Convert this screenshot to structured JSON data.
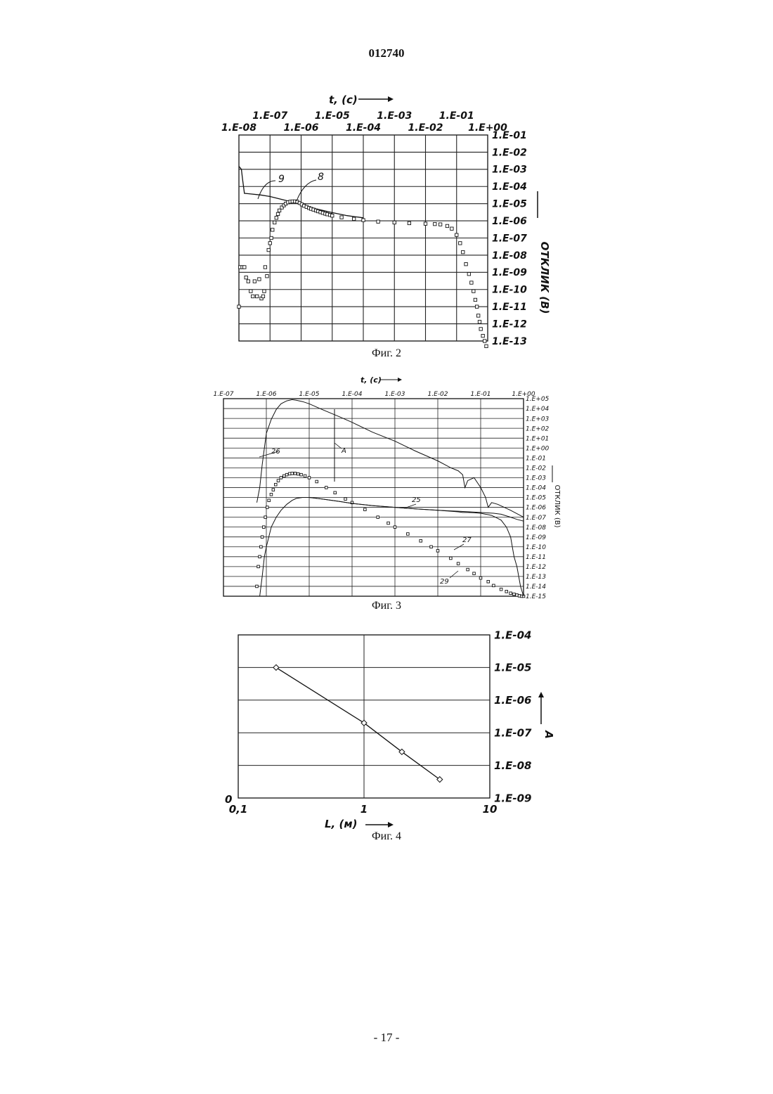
{
  "header": {
    "doc_number": "012740"
  },
  "footer": {
    "page_number": "- 17 -"
  },
  "chart_data": [
    {
      "type": "line",
      "caption": "Фиг. 2",
      "xlabel": "t, (c)",
      "ylabel": "ОТКЛИК (В)",
      "xscale": "log",
      "yscale": "log",
      "xlim": [
        1e-08,
        1
      ],
      "ylim": [
        1e-13,
        0.1
      ],
      "grid": true,
      "x_ticks_upper": [
        "1.E-07",
        "1.E-05",
        "1.E-03",
        "1.E-01"
      ],
      "x_ticks_lower": [
        "1.E-08",
        "1.E-06",
        "1.E-04",
        "1.E-02",
        "1.E+00"
      ],
      "y_ticks": [
        "1.E-01",
        "1.E-02",
        "1.E-03",
        "1.E-04",
        "1.E-05",
        "1.E-06",
        "1.E-07",
        "1.E-08",
        "1.E-09",
        "1.E-10",
        "1.E-11",
        "1.E-12",
        "1.E-13"
      ],
      "series": [
        {
          "name": "9",
          "style": "line",
          "x": [
            1e-08,
            1.2e-08,
            1.3e-08,
            1.5e-08,
            2e-08,
            5e-08,
            1e-07,
            3e-07,
            1e-06,
            3e-06,
            1e-05,
            3e-05,
            0.0001
          ],
          "y": [
            0.0015,
            0.001,
            0.0003,
            4e-05,
            3.8e-05,
            3.2e-05,
            2.6e-05,
            1.6e-05,
            9e-06,
            5e-06,
            3e-06,
            2e-06,
            1.5e-06
          ]
        },
        {
          "name": "8",
          "style": "markers",
          "x": [
            1e-08,
            1.1e-08,
            1.3e-08,
            1.5e-08,
            1.7e-08,
            2e-08,
            2.4e-08,
            2.8e-08,
            3.2e-08,
            3.8e-08,
            4.5e-08,
            5.3e-08,
            6e-08,
            6.5e-08,
            7e-08,
            8e-08,
            9e-08,
            1e-07,
            1.1e-07,
            1.2e-07,
            1.4e-07,
            1.6e-07,
            1.8e-07,
            2e-07,
            2.4e-07,
            2.8e-07,
            3.2e-07,
            3.8e-07,
            4.5e-07,
            5.3e-07,
            6.3e-07,
            7.5e-07,
            9e-07,
            1.05e-06,
            1.25e-06,
            1.5e-06,
            1.8e-06,
            2.1e-06,
            2.5e-06,
            3e-06,
            3.5e-06,
            4.2e-06,
            5e-06,
            6e-06,
            7e-06,
            8.5e-06,
            1e-05,
            2e-05,
            5e-05,
            0.0001,
            0.0003,
            0.001,
            0.003,
            0.01,
            0.02,
            0.03,
            0.05,
            0.07,
            0.1,
            0.13,
            0.16,
            0.2,
            0.25,
            0.3,
            0.35,
            0.4,
            0.45,
            0.5,
            0.55,
            0.6,
            0.7,
            0.8,
            0.9
          ],
          "y": [
            1e-11,
            2e-09,
            2e-09,
            2e-09,
            5e-10,
            3e-10,
            8e-11,
            4e-11,
            3e-10,
            4e-11,
            4e-10,
            3e-11,
            4e-11,
            8e-11,
            2e-09,
            6e-10,
            2e-08,
            5e-08,
            1e-07,
            3e-07,
            8e-07,
            1.5e-06,
            2.5e-06,
            4e-06,
            6e-06,
            8e-06,
            1e-05,
            1.2e-05,
            1.3e-05,
            1.35e-05,
            1.35e-05,
            1.3e-05,
            1.1e-05,
            9e-06,
            7.5e-06,
            6.5e-06,
            5.6e-06,
            5e-06,
            4.5e-06,
            4e-06,
            3.6e-06,
            3.2e-06,
            2.9e-06,
            2.6e-06,
            2.4e-06,
            2.2e-06,
            2e-06,
            1.6e-06,
            1.3e-06,
            1.1e-06,
            9e-07,
            8e-07,
            7.3e-07,
            6.8e-07,
            6.5e-07,
            6.2e-07,
            5e-07,
            3.5e-07,
            1.5e-07,
            5e-08,
            1.5e-08,
            3e-09,
            8e-10,
            2.5e-10,
            8e-11,
            2.5e-11,
            1e-11,
            3e-12,
            1.3e-12,
            5e-13,
            2e-13,
            1e-13,
            5e-14
          ]
        }
      ]
    },
    {
      "type": "line",
      "caption": "Фиг. 3",
      "xlabel": "t, (c)",
      "ylabel": "ОТКЛИК (В)",
      "xscale": "log",
      "yscale": "log",
      "xlim": [
        1e-07,
        1
      ],
      "ylim": [
        1e-15,
        100000.0
      ],
      "grid": true,
      "x_ticks": [
        "1.E-07",
        "1.E-06",
        "1.E-05",
        "1.E-04",
        "1.E-03",
        "1.E-02",
        "1.E-01",
        "1.E+00"
      ],
      "y_ticks": [
        "1.E+05",
        "1.E+04",
        "1.E+03",
        "1.E+02",
        "1.E+01",
        "1.E+00",
        "1.E-01",
        "1.E-02",
        "1.E-03",
        "1.E-04",
        "1.E-05",
        "1.E-06",
        "1.E-07",
        "1.E-08",
        "1.E-09",
        "1.E-10",
        "1.E-11",
        "1.E-12",
        "1.E-13",
        "1.E-14",
        "1.E-15"
      ],
      "annotations": [
        "26",
        "A",
        "25",
        "27",
        "29"
      ],
      "series": [
        {
          "name": "26",
          "style": "line",
          "x": [
            6e-07,
            7e-07,
            8e-07,
            9e-07,
            1e-06,
            1.3e-06,
            1.7e-06,
            2.2e-06,
            3e-06,
            4e-06,
            5e-06,
            7e-06,
            1e-05,
            2e-05,
            5e-05,
            0.0001,
            0.0003,
            0.001,
            0.003,
            0.01,
            0.02,
            0.03,
            0.038,
            0.043,
            0.05,
            0.07,
            0.1,
            0.13,
            0.15,
            0.18,
            0.25,
            0.5,
            1
          ],
          "y": [
            3e-06,
            0.0001,
            0.02,
            1,
            30,
            800,
            8000,
            30000.0,
            60000.0,
            80000.0,
            70000.0,
            50000.0,
            30000.0,
            8000.0,
            1500.0,
            400.0,
            40,
            5,
            0.5,
            0.05,
            0.01,
            0.005,
            0.002,
            0.0001,
            0.0005,
            0.001,
            0.0001,
            1e-05,
            1e-06,
            3e-06,
            2e-06,
            5e-07,
            1e-07
          ]
        },
        {
          "name": "27",
          "style": "markers",
          "x": [
            6e-07,
            6.5e-07,
            7e-07,
            7.5e-07,
            8e-07,
            8.7e-07,
            9.5e-07,
            1.05e-06,
            1.15e-06,
            1.3e-06,
            1.45e-06,
            1.65e-06,
            1.9e-06,
            2.2e-06,
            2.6e-06,
            3e-06,
            3.5e-06,
            4e-06,
            4.7e-06,
            5.5e-06,
            6.5e-06,
            8e-06,
            1e-05,
            1.5e-05,
            2.5e-05,
            4e-05,
            7e-05,
            0.0001,
            0.0002,
            0.0004,
            0.0007,
            0.001,
            0.002,
            0.004,
            0.007,
            0.01,
            0.02,
            0.03,
            0.05,
            0.07,
            0.1,
            0.15,
            0.2,
            0.3,
            0.4,
            0.5,
            0.6,
            0.7,
            0.8,
            0.9,
            1
          ],
          "y": [
            1e-14,
            1e-12,
            1e-11,
            1e-10,
            1e-09,
            1e-08,
            1e-07,
            1e-06,
            5e-06,
            2e-05,
            6e-05,
            0.0002,
            0.0005,
            0.001,
            0.0015,
            0.002,
            0.0025,
            0.0027,
            0.0027,
            0.0024,
            0.002,
            0.0015,
            0.001,
            0.0004,
            0.0001,
            3e-05,
            7e-06,
            3e-06,
            6e-07,
            1e-07,
            2.5e-08,
            1e-08,
            2e-09,
            4e-10,
            1e-10,
            4e-11,
            7e-12,
            2e-12,
            5e-13,
            2e-13,
            7e-14,
            3e-14,
            1.2e-14,
            5e-15,
            3e-15,
            2e-15,
            1.6e-15,
            1.3e-15,
            1.1e-15,
            1e-15,
            1e-15
          ]
        },
        {
          "name": "25",
          "style": "line",
          "x": [
            1e-05,
            2e-05,
            5e-05,
            0.0001,
            0.0003,
            0.001,
            0.003,
            0.01,
            0.03,
            0.1,
            0.2,
            0.3,
            0.5,
            0.7,
            1
          ],
          "y": [
            1e-05,
            7e-06,
            4e-06,
            2.5e-06,
            1.5e-06,
            1e-06,
            7e-07,
            5e-07,
            4e-07,
            3e-07,
            2.5e-07,
            2e-07,
            1e-07,
            6e-08,
            4e-08
          ]
        },
        {
          "name": "29",
          "style": "line",
          "x": [
            7e-07,
            8e-07,
            9e-07,
            1e-06,
            1.3e-06,
            1.7e-06,
            2.2e-06,
            3e-06,
            4e-06,
            5e-06,
            7e-06,
            1e-05,
            2e-05,
            5e-05,
            0.0001,
            0.0003,
            0.001,
            0.003,
            0.01,
            0.02,
            0.03,
            0.038,
            0.043,
            0.05,
            0.07,
            0.1,
            0.13,
            0.15,
            0.18,
            0.22,
            0.3,
            0.4,
            0.5,
            0.6,
            0.7,
            0.85,
            1
          ],
          "y": [
            1e-15,
            1e-13,
            1e-11,
            1e-10,
            1e-08,
            1e-07,
            5e-07,
            2e-06,
            5e-06,
            8e-06,
            1e-05,
            1e-05,
            7e-06,
            4e-06,
            2.5e-06,
            1.5e-06,
            1e-06,
            7e-07,
            5e-07,
            4e-07,
            3.5e-07,
            3e-07,
            3e-07,
            3e-07,
            2.8e-07,
            2.5e-07,
            2e-07,
            1.8e-07,
            1.5e-07,
            1e-07,
            5e-08,
            1e-08,
            1e-09,
            1e-11,
            1e-12,
            1e-14,
            1e-15
          ]
        }
      ]
    },
    {
      "type": "line",
      "caption": "Фиг. 4",
      "xlabel": "L, (м)",
      "ylabel": "A",
      "xscale": "log",
      "yscale": "log",
      "xlim": [
        0.1,
        10
      ],
      "ylim": [
        1e-09,
        0.0001
      ],
      "grid": true,
      "x_ticks": [
        "0,1",
        "1",
        "10"
      ],
      "y_ticks": [
        "1.E-04",
        "1.E-05",
        "1.E-06",
        "1.E-07",
        "1.E-08",
        "1.E-09"
      ],
      "origin_label": "0",
      "series": [
        {
          "name": "",
          "style": "line+diamond",
          "x": [
            0.2,
            1,
            2,
            4
          ],
          "y": [
            1e-05,
            2e-07,
            2.6e-08,
            3.7e-09
          ]
        }
      ]
    }
  ]
}
